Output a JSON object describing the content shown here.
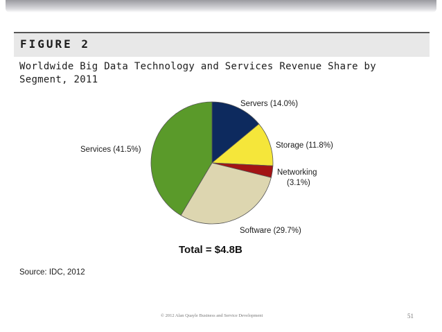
{
  "figure_label": "FIGURE 2",
  "chart_data": {
    "type": "pie",
    "title": "Worldwide Big Data Technology and Services Revenue Share by Segment, 2011",
    "slices": [
      {
        "name": "Servers",
        "value": 14.0,
        "label": "Servers (14.0%)",
        "color": "#0d2a5e"
      },
      {
        "name": "Storage",
        "value": 11.8,
        "label": "Storage (11.8%)",
        "color": "#f5e63a"
      },
      {
        "name": "Networking",
        "value": 3.1,
        "label_line1": "Networking",
        "label_line2": "(3.1%)",
        "color": "#a31414"
      },
      {
        "name": "Software",
        "value": 29.7,
        "label": "Software (29.7%)",
        "color": "#ddd6b0"
      },
      {
        "name": "Services",
        "value": 41.5,
        "label": "Services (41.5%)",
        "color": "#5a9a2a"
      }
    ],
    "total": "Total = $4.8B"
  },
  "source": "Source: IDC, 2012",
  "footer": "© 2012 Alan Quayle Business and Service Development",
  "page_number": "51"
}
